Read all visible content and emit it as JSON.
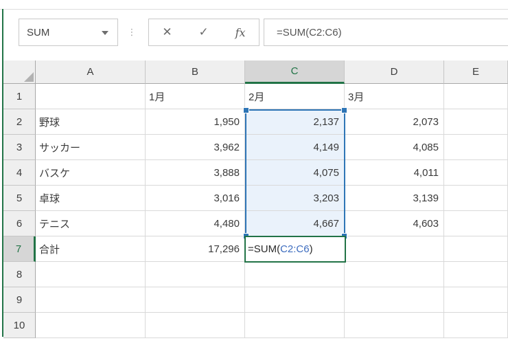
{
  "formula_bar": {
    "name_box_value": "SUM",
    "cancel_label": "✕",
    "enter_label": "✓",
    "insert_function_label": "fx",
    "separator_dots": "⋮",
    "formula_text": "=SUM(C2:C6)"
  },
  "grid": {
    "column_headers": [
      "A",
      "B",
      "C",
      "D",
      "E"
    ],
    "row_headers": [
      "1",
      "2",
      "3",
      "4",
      "5",
      "6",
      "7",
      "8",
      "9",
      "10"
    ],
    "selected_column": "C",
    "selected_row": "7",
    "selection": {
      "column": "C",
      "first_row": 2,
      "last_row": 6
    },
    "rows": [
      [
        "",
        "1月",
        "2月",
        "3月",
        ""
      ],
      [
        "野球",
        "1,950",
        "2,137",
        "2,073",
        ""
      ],
      [
        "サッカー",
        "3,962",
        "4,149",
        "4,085",
        ""
      ],
      [
        "バスケ",
        "3,888",
        "4,075",
        "4,011",
        ""
      ],
      [
        "卓球",
        "3,016",
        "3,203",
        "3,139",
        ""
      ],
      [
        "テニス",
        "4,480",
        "4,667",
        "4,603",
        ""
      ],
      [
        "合計",
        "17,296",
        "",
        "",
        ""
      ],
      [
        "",
        "",
        "",
        "",
        ""
      ],
      [
        "",
        "",
        "",
        "",
        ""
      ],
      [
        "",
        "",
        "",
        "",
        ""
      ]
    ],
    "active_cell": {
      "cell_reference": "C7",
      "formula_prefix": "=SUM(",
      "formula_reference": "C2:C6",
      "formula_suffix": ")"
    }
  },
  "colors": {
    "excel_green": "#217346",
    "selection_blue": "#2e75b6",
    "selection_fill": "#eaf2fb",
    "reference_blue": "#3e6dbf"
  }
}
